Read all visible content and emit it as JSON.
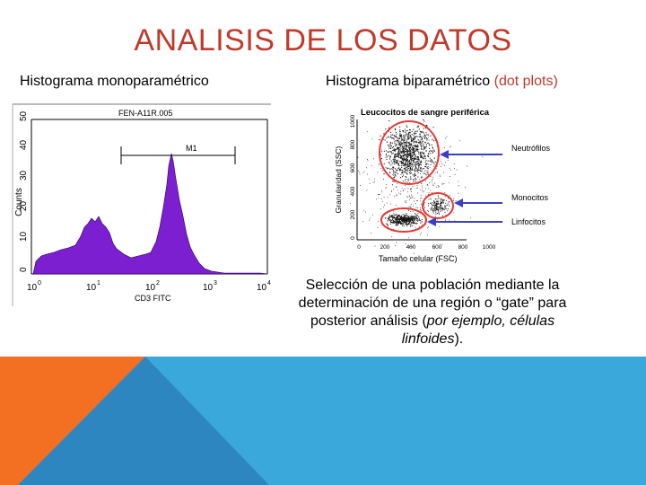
{
  "slide": {
    "title": "ANALISIS DE LOS DATOS",
    "left_subtitle": "Histograma monoparamétrico",
    "right_subtitle_main": "Histograma biparamétrico",
    "right_subtitle_accent": "(dot plots)",
    "caption": {
      "part1": "Selección de una población mediante la determinación de una región o “gate” para posterior análisis (",
      "italic": "por ejemplo, células linfoides",
      "part2": ")."
    },
    "colors": {
      "title": "#c0392b",
      "footer_orange": "#f36f21",
      "footer_blue": "#3aa8da",
      "histogram_fill": "#7b1fd1",
      "gate_circle": "#e53935",
      "arrow": "#3b3fc4"
    }
  },
  "histogram": {
    "header": "FEN-A11R.005",
    "ylabel": "Counts",
    "xlabel": "CD3 FITC",
    "marker_label": "M1",
    "yticks": [
      "0",
      "10",
      "20",
      "30",
      "40",
      "50"
    ],
    "xticks": [
      "10",
      "10",
      "10",
      "10",
      "10"
    ],
    "xtick_exponents": [
      "0",
      "1",
      "2",
      "3",
      "4"
    ]
  },
  "dotplot": {
    "title": "Leucocitos de sangre periférica",
    "ylabel": "Granularidad (SSC)",
    "xlabel": "Tamaño celular (FSC)",
    "xticks": [
      "0",
      "200",
      "400",
      "600",
      "800",
      "1000"
    ],
    "yticks": [
      "0",
      "200",
      "400",
      "600",
      "800",
      "1000"
    ],
    "populations": [
      "Neutrófilos",
      "Monocitos",
      "Linfocitos"
    ]
  }
}
